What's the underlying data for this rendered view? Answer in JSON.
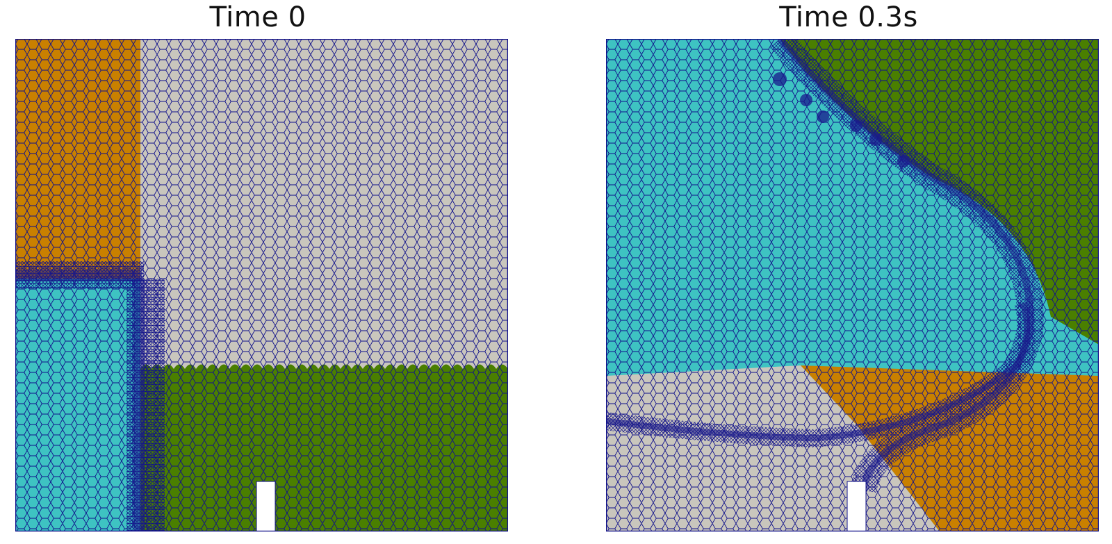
{
  "panels": [
    {
      "title": "Time 0",
      "regions": [
        {
          "name": "orange",
          "color": "#c98000"
        },
        {
          "name": "gray",
          "color": "#c9c6bd"
        },
        {
          "name": "cyan",
          "color": "#3ec3c2"
        },
        {
          "name": "green",
          "color": "#4a7f00"
        }
      ]
    },
    {
      "title": "Time 0.3s",
      "regions": [
        {
          "name": "cyan",
          "color": "#3ec3c2"
        },
        {
          "name": "green",
          "color": "#4a7f00"
        },
        {
          "name": "gray",
          "color": "#c9c6bd"
        },
        {
          "name": "orange",
          "color": "#c98000"
        }
      ]
    }
  ],
  "colors": {
    "mesh_lines": "#10108a",
    "refined_band": "#1a1a8c",
    "background": "#ffffff"
  }
}
